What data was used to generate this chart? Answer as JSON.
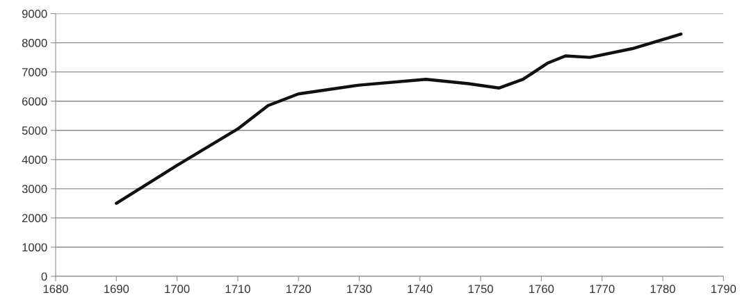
{
  "chart_data": {
    "type": "line",
    "x": [
      1690,
      1700,
      1710,
      1715,
      1720,
      1730,
      1741,
      1748,
      1753,
      1757,
      1761,
      1764,
      1768,
      1775,
      1783
    ],
    "series": [
      {
        "color": "#111111",
        "values": [
          2500,
          3800,
          5050,
          5850,
          6250,
          6550,
          6750,
          6600,
          6450,
          6750,
          7300,
          7550,
          7500,
          7800,
          8300
        ]
      }
    ],
    "xlim": [
      1680,
      1790
    ],
    "xticks": [
      1680,
      1690,
      1700,
      1710,
      1720,
      1730,
      1740,
      1750,
      1760,
      1770,
      1780,
      1790
    ],
    "ylim": [
      0,
      9000
    ],
    "yticks": [
      0,
      1000,
      2000,
      3000,
      4000,
      5000,
      6000,
      7000,
      8000,
      9000
    ],
    "grid": "y",
    "marker": "none",
    "line_style": "solid"
  }
}
